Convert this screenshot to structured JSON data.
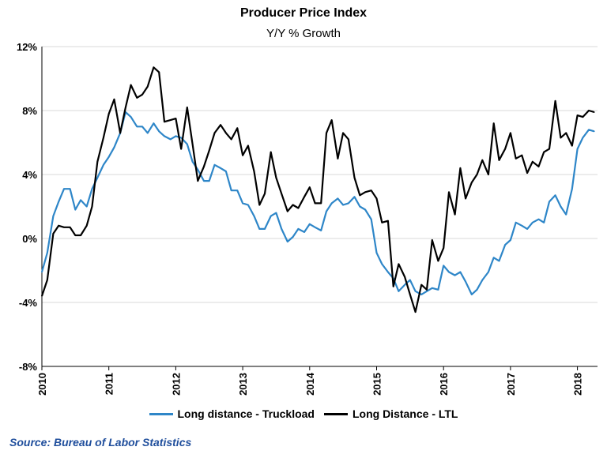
{
  "chart_data": {
    "type": "line",
    "title": "Producer Price Index",
    "subtitle": "Y/Y % Growth",
    "xlabel": "",
    "ylabel": "",
    "xlim": [
      2010.0,
      2018.3
    ],
    "ylim": [
      -8,
      12
    ],
    "y_ticks": [
      -8,
      -4,
      0,
      4,
      8,
      12
    ],
    "y_tick_labels": [
      "-8%",
      "-4%",
      "0%",
      "4%",
      "8%",
      "12%"
    ],
    "x_ticks": [
      2010,
      2011,
      2012,
      2013,
      2014,
      2015,
      2016,
      2017,
      2018
    ],
    "x_tick_labels": [
      "2010",
      "2011",
      "2012",
      "2013",
      "2014",
      "2015",
      "2016",
      "2017",
      "2018"
    ],
    "grid": "horizontal",
    "legend": "bottom",
    "series": [
      {
        "name": "Long distance - Truckload",
        "color": "#2e86c8",
        "x": [
          2010.0,
          2010.08,
          2010.17,
          2010.25,
          2010.33,
          2010.42,
          2010.5,
          2010.58,
          2010.67,
          2010.75,
          2010.83,
          2010.92,
          2011.0,
          2011.08,
          2011.17,
          2011.25,
          2011.33,
          2011.42,
          2011.5,
          2011.58,
          2011.67,
          2011.75,
          2011.83,
          2011.92,
          2012.0,
          2012.08,
          2012.17,
          2012.25,
          2012.33,
          2012.42,
          2012.5,
          2012.58,
          2012.67,
          2012.75,
          2012.83,
          2012.92,
          2013.0,
          2013.08,
          2013.17,
          2013.25,
          2013.33,
          2013.42,
          2013.5,
          2013.58,
          2013.67,
          2013.75,
          2013.83,
          2013.92,
          2014.0,
          2014.08,
          2014.17,
          2014.25,
          2014.33,
          2014.42,
          2014.5,
          2014.58,
          2014.67,
          2014.75,
          2014.83,
          2014.92,
          2015.0,
          2015.08,
          2015.17,
          2015.25,
          2015.33,
          2015.42,
          2015.5,
          2015.58,
          2015.67,
          2015.75,
          2015.83,
          2015.92,
          2016.0,
          2016.08,
          2016.17,
          2016.25,
          2016.33,
          2016.42,
          2016.5,
          2016.58,
          2016.67,
          2016.75,
          2016.83,
          2016.92,
          2017.0,
          2017.08,
          2017.17,
          2017.25,
          2017.33,
          2017.42,
          2017.5,
          2017.58,
          2017.67,
          2017.75,
          2017.83,
          2017.92,
          2018.0,
          2018.08,
          2018.17,
          2018.25
        ],
        "values": [
          -2.1,
          -0.9,
          1.4,
          2.3,
          3.1,
          3.1,
          1.8,
          2.4,
          2.0,
          3.1,
          3.8,
          4.6,
          5.1,
          5.7,
          6.6,
          7.9,
          7.6,
          7.0,
          7.0,
          6.6,
          7.2,
          6.7,
          6.4,
          6.2,
          6.4,
          6.3,
          5.9,
          4.8,
          4.3,
          3.6,
          3.6,
          4.6,
          4.4,
          4.2,
          3.0,
          3.0,
          2.2,
          2.1,
          1.4,
          0.6,
          0.6,
          1.4,
          1.6,
          0.6,
          -0.2,
          0.1,
          0.6,
          0.4,
          0.9,
          0.7,
          0.5,
          1.7,
          2.2,
          2.5,
          2.1,
          2.2,
          2.6,
          2.0,
          1.8,
          1.2,
          -0.9,
          -1.6,
          -2.1,
          -2.5,
          -3.3,
          -2.9,
          -2.6,
          -3.3,
          -3.5,
          -3.3,
          -3.1,
          -3.2,
          -1.7,
          -2.1,
          -2.3,
          -2.1,
          -2.7,
          -3.5,
          -3.2,
          -2.6,
          -2.1,
          -1.2,
          -1.4,
          -0.4,
          -0.1,
          1.0,
          0.8,
          0.6,
          1.0,
          1.2,
          1.0,
          2.3,
          2.7,
          2.0,
          1.5,
          3.1,
          5.6,
          6.3,
          6.8,
          6.7
        ]
      },
      {
        "name": "Long Distance - LTL",
        "color": "#000000",
        "x": [
          2010.0,
          2010.08,
          2010.17,
          2010.25,
          2010.33,
          2010.42,
          2010.5,
          2010.58,
          2010.67,
          2010.75,
          2010.83,
          2010.92,
          2011.0,
          2011.08,
          2011.17,
          2011.25,
          2011.33,
          2011.42,
          2011.5,
          2011.58,
          2011.67,
          2011.75,
          2011.83,
          2011.92,
          2012.0,
          2012.08,
          2012.17,
          2012.25,
          2012.33,
          2012.42,
          2012.5,
          2012.58,
          2012.67,
          2012.75,
          2012.83,
          2012.92,
          2013.0,
          2013.08,
          2013.17,
          2013.25,
          2013.33,
          2013.42,
          2013.5,
          2013.58,
          2013.67,
          2013.75,
          2013.83,
          2013.92,
          2014.0,
          2014.08,
          2014.17,
          2014.25,
          2014.33,
          2014.42,
          2014.5,
          2014.58,
          2014.67,
          2014.75,
          2014.83,
          2014.92,
          2015.0,
          2015.08,
          2015.17,
          2015.25,
          2015.33,
          2015.42,
          2015.5,
          2015.58,
          2015.67,
          2015.75,
          2015.83,
          2015.92,
          2016.0,
          2016.08,
          2016.17,
          2016.25,
          2016.33,
          2016.42,
          2016.5,
          2016.58,
          2016.67,
          2016.75,
          2016.83,
          2016.92,
          2017.0,
          2017.08,
          2017.17,
          2017.25,
          2017.33,
          2017.42,
          2017.5,
          2017.58,
          2017.67,
          2017.75,
          2017.83,
          2017.92,
          2018.0,
          2018.08,
          2018.17,
          2018.25
        ],
        "values": [
          -3.6,
          -2.6,
          0.3,
          0.8,
          0.7,
          0.7,
          0.2,
          0.2,
          0.8,
          2.0,
          4.8,
          6.3,
          7.8,
          8.7,
          6.6,
          8.2,
          9.6,
          8.8,
          9.0,
          9.5,
          10.7,
          10.4,
          7.3,
          7.4,
          7.5,
          5.6,
          8.2,
          5.9,
          3.6,
          4.5,
          5.5,
          6.6,
          7.1,
          6.6,
          6.2,
          6.9,
          5.2,
          5.8,
          4.2,
          2.1,
          2.8,
          5.4,
          3.8,
          2.8,
          1.7,
          2.1,
          1.9,
          2.6,
          3.2,
          2.2,
          2.2,
          6.6,
          7.4,
          5.0,
          6.6,
          6.2,
          3.8,
          2.7,
          2.9,
          3.0,
          2.5,
          1.0,
          1.1,
          -3.0,
          -1.6,
          -2.4,
          -3.5,
          -4.6,
          -2.9,
          -3.2,
          -0.1,
          -1.4,
          -0.6,
          2.9,
          1.5,
          4.4,
          2.5,
          3.5,
          4.0,
          4.9,
          4.0,
          7.2,
          4.9,
          5.6,
          6.6,
          5.0,
          5.2,
          4.1,
          4.8,
          4.5,
          5.4,
          5.6,
          8.6,
          6.3,
          6.6,
          5.8,
          7.7,
          7.6,
          8.0,
          7.9
        ]
      }
    ]
  },
  "source": "Source: Bureau of Labor Statistics"
}
